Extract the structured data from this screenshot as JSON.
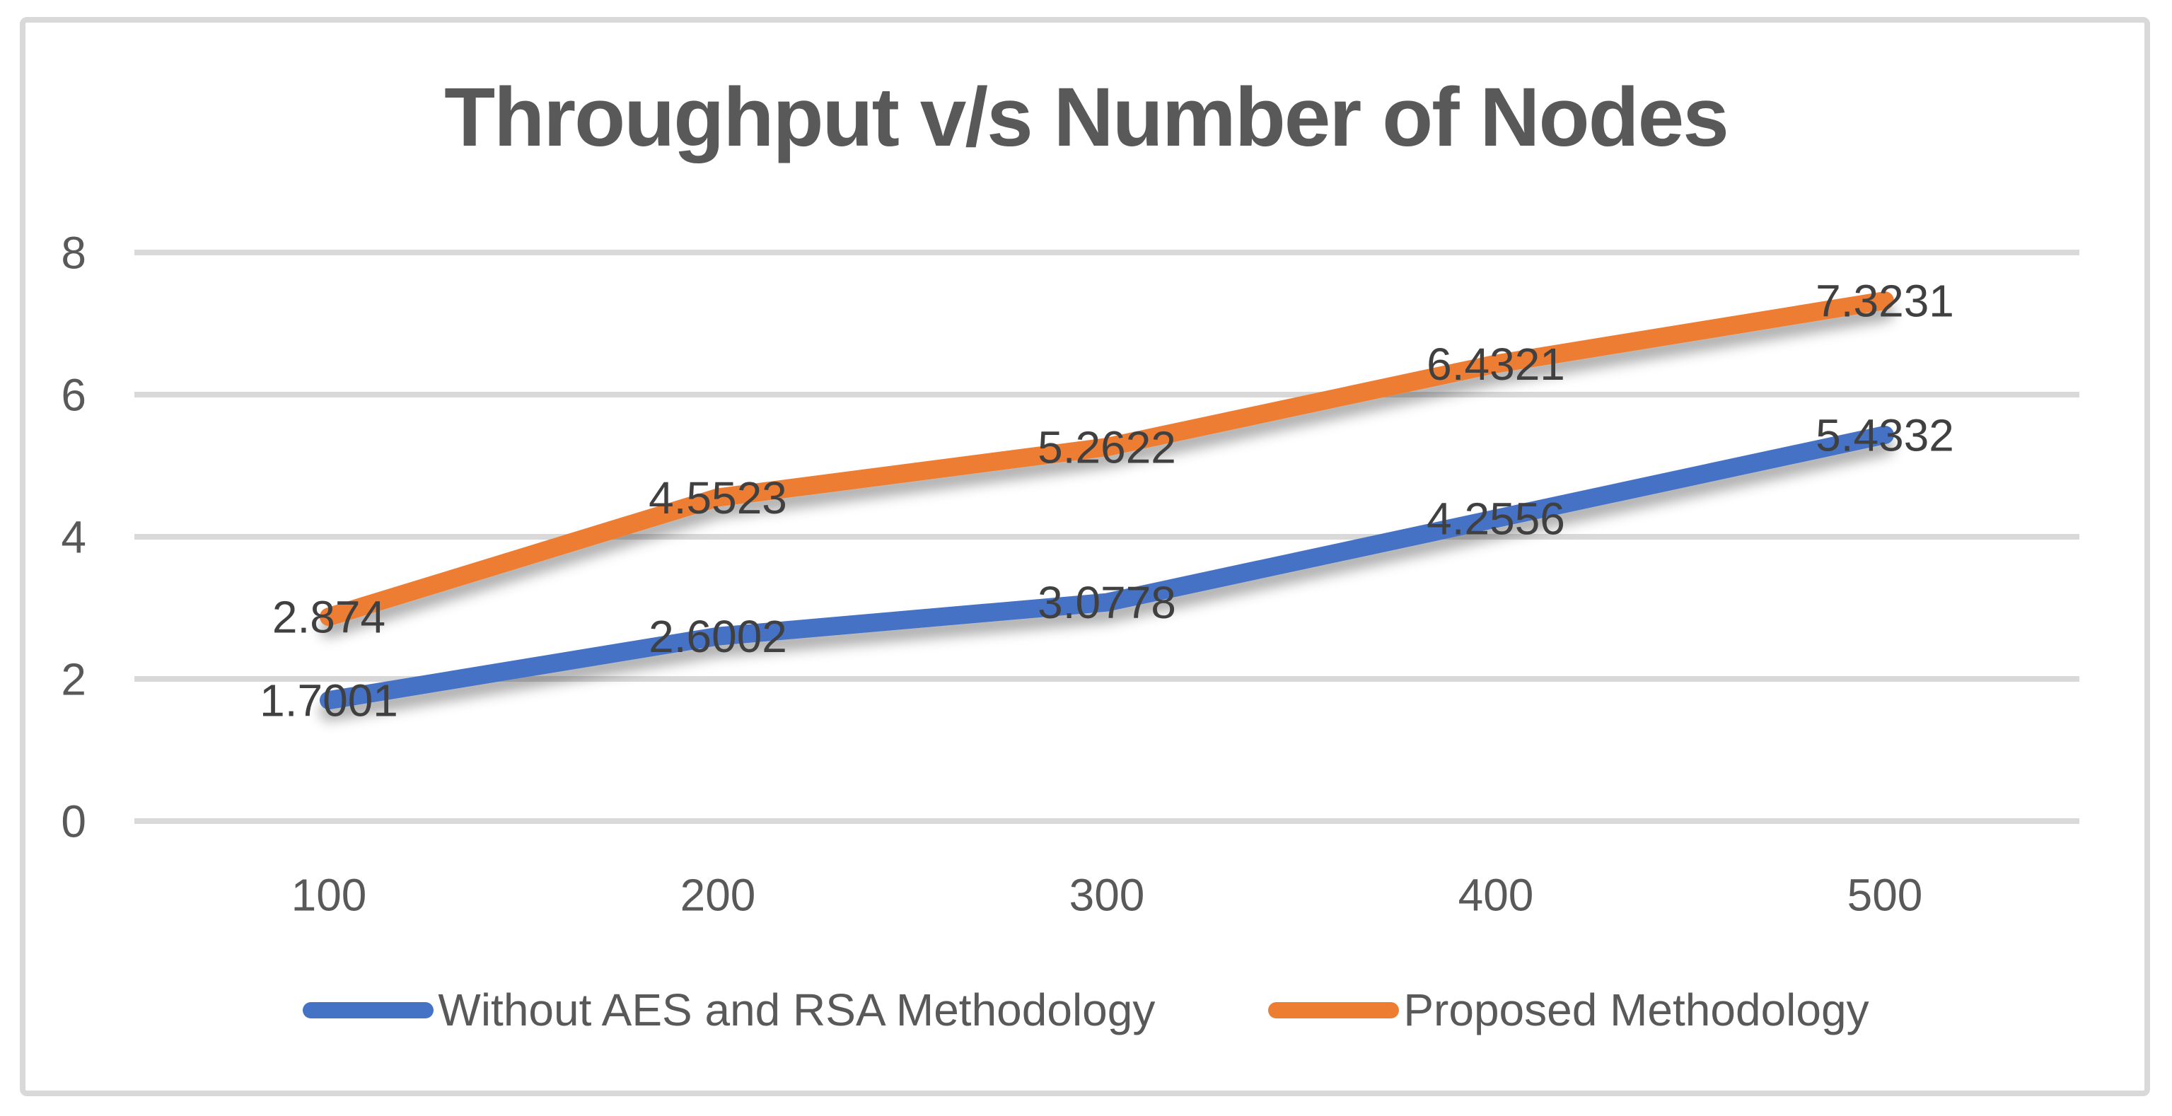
{
  "chart_data": {
    "type": "line",
    "title": "Throughput v/s Number of Nodes",
    "xlabel": "",
    "ylabel": "",
    "categories": [
      "100",
      "200",
      "300",
      "400",
      "500"
    ],
    "yticks": [
      "0",
      "2",
      "4",
      "6",
      "8"
    ],
    "ylim": [
      0,
      8
    ],
    "grid": "horizontal",
    "legend_position": "bottom",
    "colors": {
      "gridline": "#D9D9D9",
      "frame_border": "#D9D9D9",
      "axis_text": "#595959",
      "data_label_text": "#404040",
      "title_text": "#595959"
    },
    "series": [
      {
        "name": "Without AES and RSA Methodology",
        "color": "#4472C4",
        "values": [
          1.7001,
          2.6002,
          3.0778,
          4.2556,
          5.4332
        ],
        "labels": [
          "1.7001",
          "2.6002",
          "3.0778",
          "4.2556",
          "5.4332"
        ]
      },
      {
        "name": "Proposed Methodology",
        "color": "#ED7D31",
        "values": [
          2.874,
          4.5523,
          5.2622,
          6.4321,
          7.3231
        ],
        "labels": [
          "2.874",
          "4.5523",
          "5.2622",
          "6.4321",
          "7.3231"
        ]
      }
    ]
  }
}
